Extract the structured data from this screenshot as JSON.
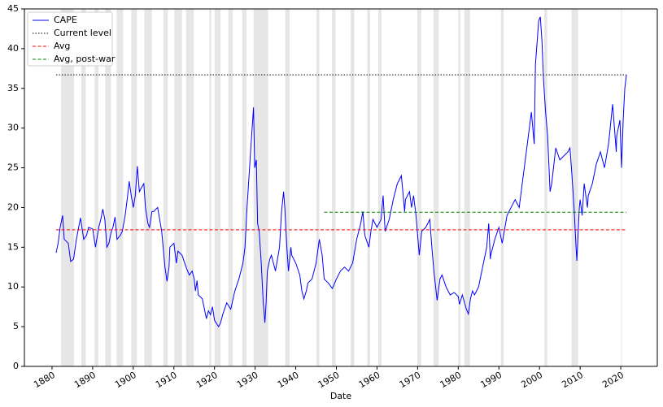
{
  "chart_data": {
    "type": "line",
    "x_label": "Date",
    "xlim": [
      1873.2,
      2029
    ],
    "ylim": [
      0,
      45
    ],
    "xticks": [
      1880,
      1890,
      1900,
      1910,
      1920,
      1930,
      1940,
      1950,
      1960,
      1970,
      1980,
      1990,
      2000,
      2010,
      2020
    ],
    "yticks": [
      0,
      5,
      10,
      15,
      20,
      25,
      30,
      35,
      40,
      45
    ],
    "legend": "upper left",
    "shade_color": "#e6e6e6",
    "recessions": [
      [
        1882.2,
        1885.4
      ],
      [
        1887.2,
        1888.3
      ],
      [
        1890.5,
        1891.4
      ],
      [
        1893.1,
        1894.5
      ],
      [
        1895.9,
        1897.5
      ],
      [
        1899.5,
        1900.9
      ],
      [
        1902.7,
        1904.6
      ],
      [
        1907.4,
        1908.5
      ],
      [
        1910.1,
        1912.0
      ],
      [
        1913.0,
        1914.9
      ],
      [
        1918.7,
        1919.2
      ],
      [
        1920.0,
        1921.5
      ],
      [
        1923.4,
        1924.5
      ],
      [
        1926.8,
        1927.9
      ],
      [
        1929.6,
        1933.2
      ],
      [
        1937.4,
        1938.5
      ],
      [
        1945.1,
        1945.8
      ],
      [
        1948.9,
        1949.8
      ],
      [
        1953.5,
        1954.4
      ],
      [
        1957.6,
        1958.3
      ],
      [
        1960.3,
        1961.1
      ],
      [
        1969.9,
        1970.9
      ],
      [
        1973.9,
        1975.2
      ],
      [
        1980.0,
        1980.5
      ],
      [
        1981.5,
        1982.9
      ],
      [
        1990.5,
        1991.2
      ],
      [
        2001.2,
        2001.9
      ],
      [
        2007.9,
        2009.5
      ],
      [
        2020.1,
        2020.3
      ]
    ],
    "series": [
      {
        "name": "CAPE",
        "color": "#0000ff",
        "dash": "none",
        "x": [
          1881,
          1881.5,
          1882,
          1882.6,
          1883,
          1884,
          1884.6,
          1885.3,
          1886,
          1887,
          1887.8,
          1888.5,
          1889,
          1890,
          1890.7,
          1891.5,
          1892,
          1892.5,
          1893,
          1893.5,
          1894,
          1894.5,
          1895,
          1895.5,
          1896,
          1896.8,
          1897.3,
          1898,
          1898.5,
          1899,
          1899.5,
          1900,
          1900.5,
          1901,
          1901.5,
          1902,
          1902.6,
          1903,
          1903.6,
          1904,
          1904.6,
          1905,
          1906,
          1906.5,
          1907,
          1907.8,
          1908.3,
          1908.8,
          1909,
          1910,
          1910.6,
          1911,
          1912,
          1913,
          1913.8,
          1914.5,
          1915,
          1915.3,
          1915.7,
          1916,
          1917,
          1918,
          1918.5,
          1919,
          1919.5,
          1920,
          1921,
          1921.5,
          1922,
          1923,
          1924,
          1925,
          1926,
          1927,
          1927.5,
          1928,
          1928.5,
          1929,
          1929.6,
          1929.9,
          1930.3,
          1930.6,
          1931,
          1931.5,
          1932,
          1932.4,
          1932.7,
          1933,
          1933.6,
          1934,
          1935,
          1936,
          1936.5,
          1937,
          1937.3,
          1937.8,
          1938.2,
          1938.8,
          1939,
          1940,
          1941,
          1941.5,
          1942,
          1942.6,
          1943,
          1944,
          1945,
          1945.8,
          1946.5,
          1947,
          1948,
          1949,
          1949.6,
          1950,
          1951,
          1952,
          1953,
          1954,
          1955,
          1956,
          1956.5,
          1957,
          1958,
          1958.5,
          1959,
          1960,
          1961,
          1961.5,
          1962,
          1963,
          1964,
          1965,
          1966,
          1966.8,
          1967,
          1968,
          1968.5,
          1969,
          1969.6,
          1970,
          1970.4,
          1971,
          1972,
          1973,
          1973.5,
          1974,
          1974.8,
          1975.5,
          1976,
          1977,
          1978,
          1979,
          1980,
          1980.3,
          1981,
          1982,
          1982.5,
          1983,
          1983.5,
          1984,
          1985,
          1986,
          1987,
          1987.5,
          1987.9,
          1988,
          1989,
          1990,
          1990.8,
          1991,
          1992,
          1993,
          1994,
          1995,
          1996,
          1997,
          1998,
          1998.7,
          1999,
          1999.8,
          2000.2,
          2000.6,
          2001,
          2001.5,
          2002,
          2002.6,
          2003,
          2004,
          2005,
          2006,
          2007,
          2007.5,
          2008,
          2008.5,
          2009,
          2009.2,
          2009.8,
          2010,
          2010.5,
          2011,
          2011.8,
          2012,
          2013,
          2014,
          2015,
          2016,
          2017,
          2018,
          2018.9,
          2019,
          2019.8,
          2020.2,
          2020.6,
          2021,
          2021.4
        ],
        "values": [
          14.3,
          15.5,
          17.5,
          19,
          16,
          15.5,
          13.2,
          13.5,
          16,
          18.7,
          16,
          16.5,
          17.5,
          17.3,
          15,
          17.5,
          18.5,
          19.8,
          18.5,
          15,
          15.5,
          16.8,
          17.5,
          18.8,
          16,
          16.5,
          17,
          19,
          21,
          23.3,
          21.5,
          20,
          21.5,
          25.2,
          22,
          22.5,
          23,
          20,
          18,
          17.5,
          19.5,
          19.5,
          20,
          18.5,
          17,
          12.5,
          10.7,
          12.5,
          15,
          15.5,
          13,
          14.5,
          14,
          12.5,
          11.5,
          12,
          11,
          9.5,
          10.8,
          9,
          8.5,
          6,
          7,
          6.5,
          7.5,
          5.8,
          5,
          5.5,
          6.5,
          8,
          7.2,
          9.5,
          11,
          13,
          15,
          20,
          24,
          28,
          32.6,
          25,
          26,
          18,
          17,
          13,
          8,
          5.5,
          8,
          12,
          13.5,
          14,
          12,
          15,
          19.5,
          22,
          20,
          15,
          12,
          15,
          14,
          13,
          11.5,
          9.5,
          8.5,
          9.5,
          10.5,
          11,
          13,
          16,
          14,
          11,
          10.5,
          9.8,
          10.5,
          11,
          12,
          12.5,
          12,
          13,
          16,
          18,
          19.5,
          16.5,
          15,
          17,
          18.5,
          17.5,
          18.5,
          21.5,
          17,
          18.5,
          21,
          23,
          24,
          19.5,
          21,
          22,
          20,
          21.5,
          19,
          16.5,
          14,
          17,
          17.5,
          18.5,
          15,
          12,
          8.3,
          11,
          11.5,
          10,
          9,
          9.3,
          8.8,
          7.8,
          9,
          7.2,
          6.6,
          8.5,
          9.5,
          9,
          10,
          12.5,
          15,
          18,
          13.5,
          14,
          16,
          17.5,
          15.5,
          16,
          19,
          20,
          21,
          20,
          24,
          28,
          32,
          28,
          38,
          43.5,
          44,
          41,
          36,
          32,
          29,
          22,
          23,
          27.5,
          26,
          26.5,
          27,
          27.5,
          24,
          20,
          15,
          13.3,
          20,
          21,
          19,
          23,
          20,
          21.5,
          23,
          25.5,
          27,
          25,
          28,
          33,
          27,
          29,
          31,
          25,
          31,
          35,
          36.7
        ]
      },
      {
        "name": "Current level",
        "color": "#000000",
        "dash": "1.5 2",
        "x": [
          1881,
          2021.4
        ],
        "values": [
          36.7,
          36.7
        ]
      },
      {
        "name": "Avg",
        "color": "#ff0000",
        "dash": "4 2.5",
        "x": [
          1881,
          2021.4
        ],
        "values": [
          17.2,
          17.2
        ]
      },
      {
        "name": "Avg, post-war",
        "color": "#008000",
        "dash": "4 2.5",
        "x": [
          1947,
          2021.4
        ],
        "values": [
          19.4,
          19.4
        ]
      }
    ]
  }
}
